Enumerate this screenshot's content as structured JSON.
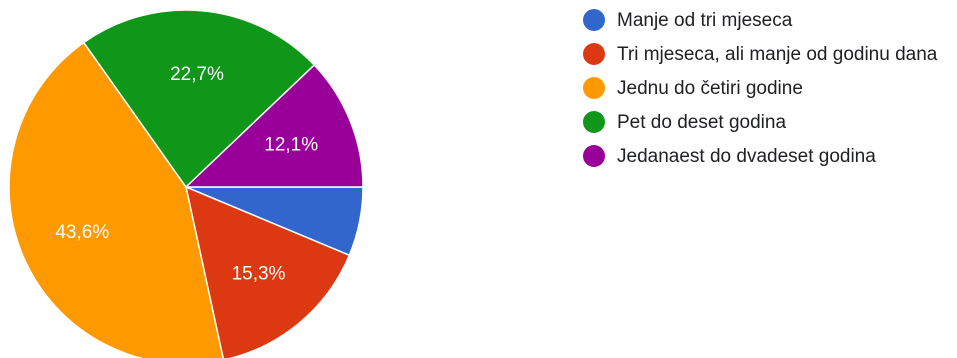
{
  "chart_data": {
    "type": "pie",
    "categories": [
      "Manje od tri mjeseca",
      "Tri mjeseca, ali manje od godinu dana",
      "Jednu do četiri godine",
      "Pet do deset godina",
      "Jedanaest do dvadeset godina"
    ],
    "values": [
      6.3,
      15.3,
      43.6,
      22.7,
      12.1
    ],
    "value_labels": [
      "",
      "15,3%",
      "43,6%",
      "22,7%",
      "12,1%"
    ],
    "colors": [
      "#3366cc",
      "#dc3912",
      "#ff9900",
      "#109618",
      "#990099"
    ],
    "legend_position": "right",
    "title": ""
  }
}
